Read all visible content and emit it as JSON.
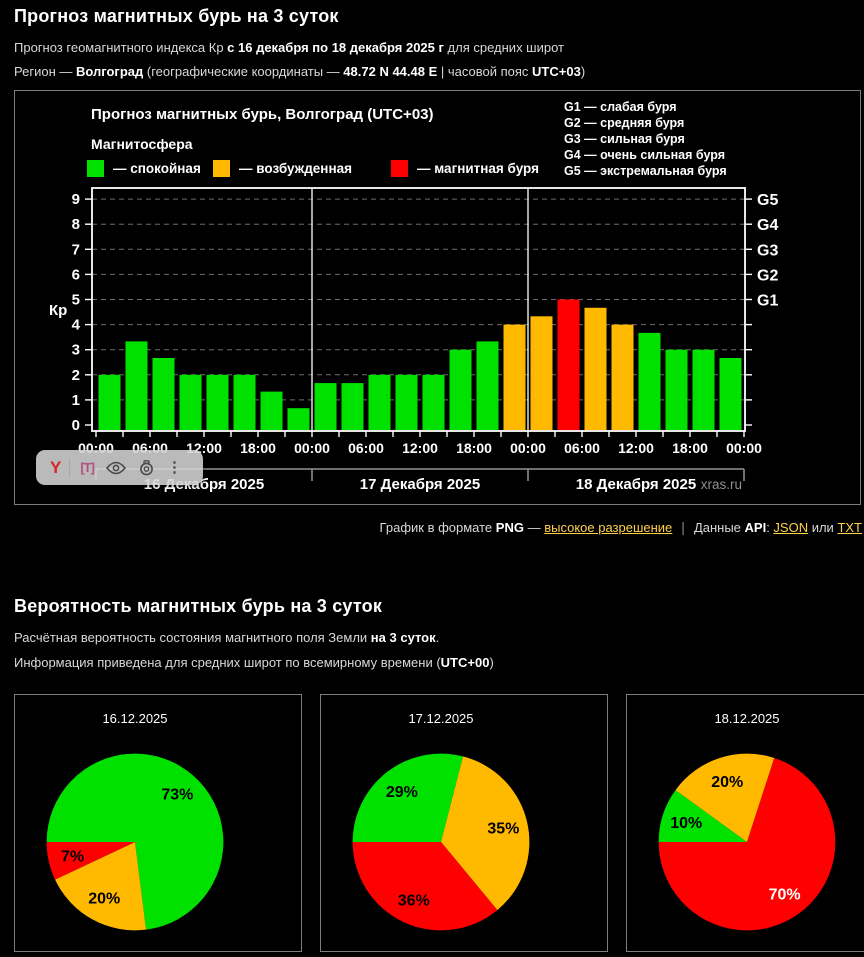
{
  "header": {
    "title": "Прогноз магнитных бурь на 3 суток",
    "line1": [
      "Прогноз геомагнитного индекса Кр ",
      "с 16 декабря по 18 декабря 2025 г",
      " для средних широт"
    ],
    "line2": [
      "Регион — ",
      "Волгоград",
      " (географические координаты — ",
      "48.72 N 44.48 E",
      " | часовой пояс ",
      "UTC+03",
      ")"
    ]
  },
  "chart": {
    "title": "Прогноз магнитных бурь, Волгоград (UTC+03)",
    "magnetosphere_label": "Магнитосфера",
    "legend": [
      {
        "label": "— спокойная",
        "color": "#00e100"
      },
      {
        "label": "— возбужденная",
        "color": "#ffba00"
      },
      {
        "label": "— магнитная буря",
        "color": "#ff0000"
      }
    ],
    "g_legend": [
      "G1 — слабая буря",
      "G2 — средняя буря",
      "G3 — сильная буря",
      "G4 — очень сильная буря",
      "G5 — экстремальная буря"
    ]
  },
  "chart_data": [
    {
      "type": "bar",
      "ylabel": "Кр",
      "ylim": [
        0,
        9
      ],
      "y_ticks": [
        0,
        1,
        2,
        3,
        4,
        5,
        6,
        7,
        8,
        9
      ],
      "values": [
        2,
        3.33,
        2.67,
        2,
        2,
        2,
        1.33,
        0.67,
        1.67,
        1.67,
        2,
        2,
        2,
        3,
        3.33,
        4,
        4.33,
        5,
        4.67,
        4,
        3.67,
        3,
        3,
        2.67
      ],
      "bar_interval_hours": 3,
      "thresholds": {
        "excited_min": 4,
        "storm_min": 5
      },
      "colors": {
        "quiet": "#00e100",
        "excited": "#ffba00",
        "storm": "#ff0000"
      },
      "time_labels": [
        "00:00",
        "06:00",
        "12:00",
        "18:00",
        "00:00",
        "06:00",
        "12:00",
        "18:00",
        "00:00",
        "06:00",
        "12:00",
        "18:00",
        "00:00"
      ],
      "day_labels": [
        "16 Декабря 2025",
        "17 Декабря 2025",
        "18 Декабря 2025"
      ],
      "g_scale": [
        {
          "kp": 5,
          "label": "G1"
        },
        {
          "kp": 6,
          "label": "G2"
        },
        {
          "kp": 7,
          "label": "G3"
        },
        {
          "kp": 8,
          "label": "G4"
        },
        {
          "kp": 9,
          "label": "G5"
        }
      ],
      "grid": true,
      "watermark": "xras.ru"
    },
    {
      "type": "pie",
      "title": "16.12.2025",
      "start_angle": 270,
      "slices": [
        {
          "label": "73%",
          "value": 73,
          "color": "#00e100",
          "label_color": "#000"
        },
        {
          "label": "20%",
          "value": 20,
          "color": "#ffba00",
          "label_color": "#000"
        },
        {
          "label": "7%",
          "value": 7,
          "color": "#ff0000",
          "label_color": "#000"
        }
      ]
    },
    {
      "type": "pie",
      "title": "17.12.2025",
      "start_angle": 270,
      "slices": [
        {
          "label": "29%",
          "value": 29,
          "color": "#00e100",
          "label_color": "#000"
        },
        {
          "label": "35%",
          "value": 35,
          "color": "#ffba00",
          "label_color": "#000"
        },
        {
          "label": "36%",
          "value": 36,
          "color": "#ff0000",
          "label_color": "#000"
        }
      ]
    },
    {
      "type": "pie",
      "title": "18.12.2025",
      "start_angle": 270,
      "slices": [
        {
          "label": "10%",
          "value": 10,
          "color": "#00e100",
          "label_color": "#000"
        },
        {
          "label": "20%",
          "value": 20,
          "color": "#ffba00",
          "label_color": "#000"
        },
        {
          "label": "70%",
          "value": 70,
          "color": "#ff0000",
          "label_color": "#fff"
        }
      ]
    }
  ],
  "links": {
    "prefix": "График в формате ",
    "png": "PNG",
    "dash": " — ",
    "hi_res": "высокое разрешение",
    "sep": "|",
    "data_prefix": "Данные ",
    "api": "API",
    "colon": ": ",
    "json": "JSON",
    "or": " или ",
    "txt": "TXT"
  },
  "section2": {
    "title": "Вероятность магнитных бурь на 3 суток",
    "line1": [
      "Расчётная вероятность состояния магнитного поля Земли ",
      "на 3 суток",
      "."
    ],
    "line2": [
      "Информация приведена для средних широт по всемирному времени (",
      "UTC+00",
      ")"
    ]
  },
  "toolbar": {
    "yandex_glyph": "Y",
    "translate_glyph": "[T]",
    "more_glyph": "⋮"
  }
}
